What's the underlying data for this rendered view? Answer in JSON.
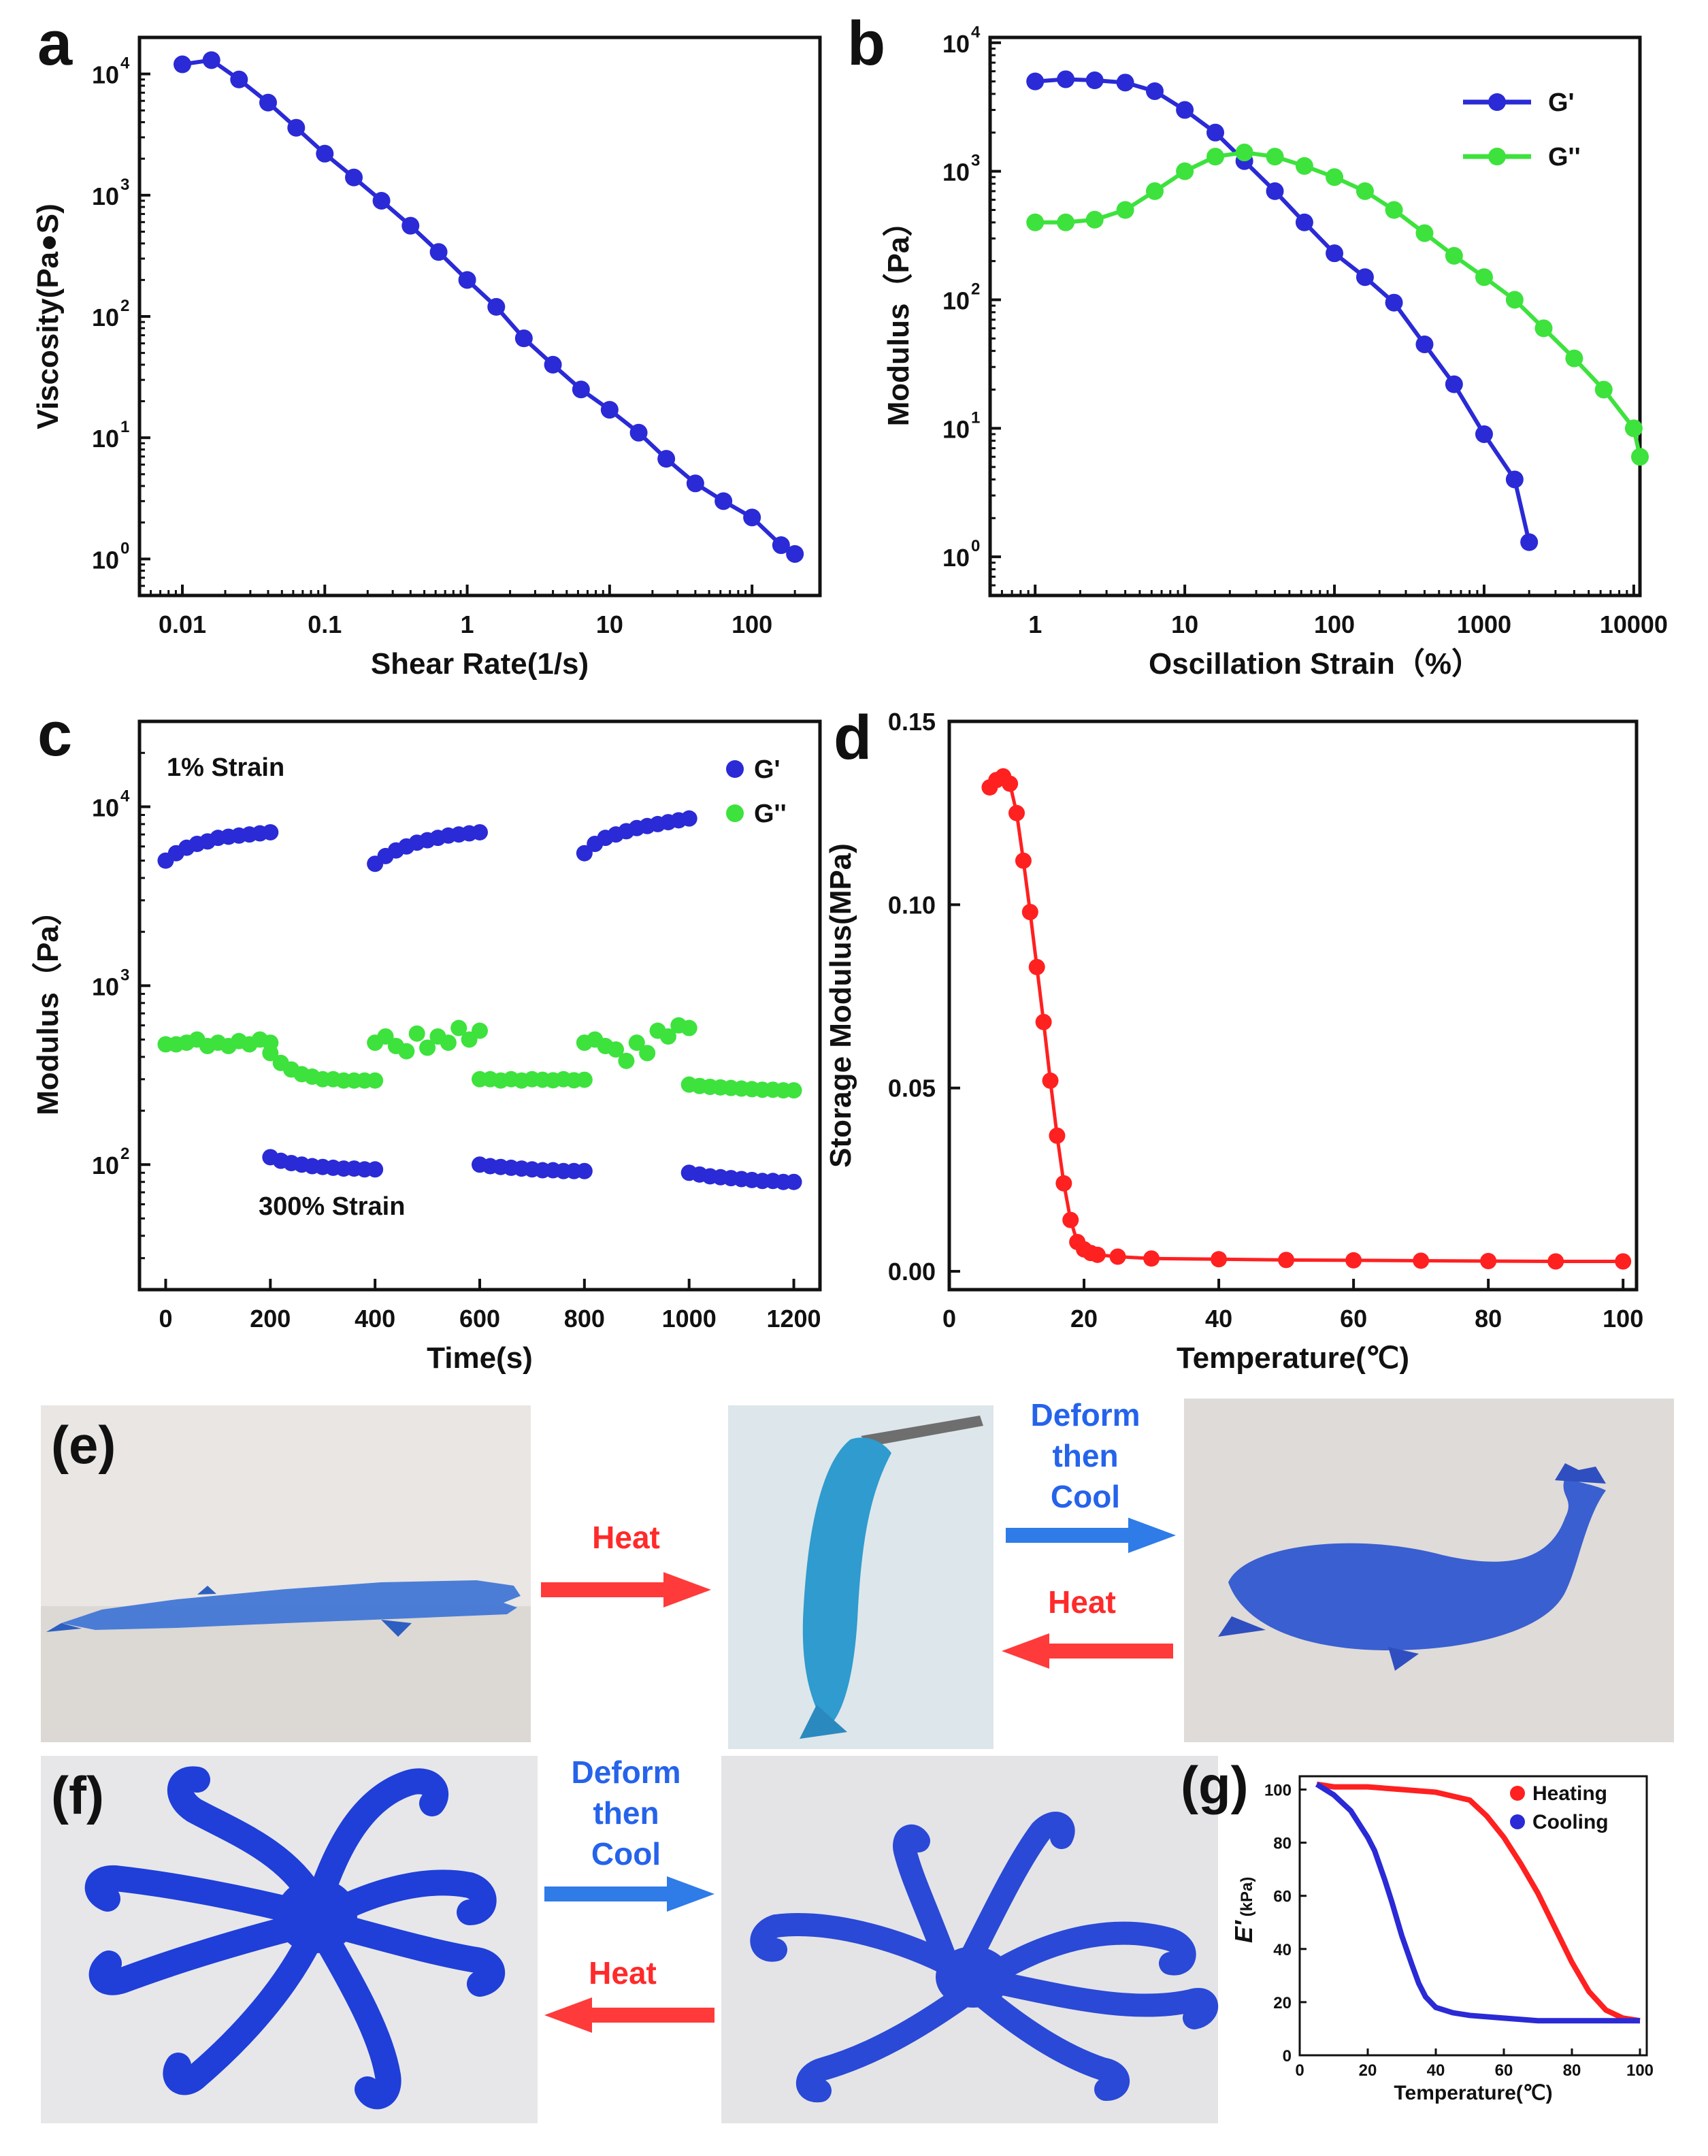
{
  "colors": {
    "blue": "#2a2ad6",
    "green": "#3de23d",
    "red": "#ff2020",
    "text_blue": "#2563eb",
    "text_red": "#ff2a2a"
  },
  "chart_data": [
    {
      "id": "a",
      "panel_label": "a",
      "type": "line",
      "xscale": "log",
      "yscale": "log",
      "xlabel": "Shear Rate(1/s)",
      "ylabel": "Viscosity(Pa●S)",
      "xlim": [
        0.005,
        300
      ],
      "ylim": [
        0.5,
        20000
      ],
      "xticks": [
        {
          "v": 0.01,
          "label": "0.01"
        },
        {
          "v": 0.1,
          "label": "0.1"
        },
        {
          "v": 1,
          "label": "1"
        },
        {
          "v": 10,
          "label": "10"
        },
        {
          "v": 100,
          "label": "100"
        }
      ],
      "yticks": [
        {
          "v": 1,
          "base": "10",
          "exp": "0"
        },
        {
          "v": 10,
          "base": "10",
          "exp": "1"
        },
        {
          "v": 100,
          "base": "10",
          "exp": "2"
        },
        {
          "v": 1000,
          "base": "10",
          "exp": "3"
        },
        {
          "v": 10000,
          "base": "10",
          "exp": "4"
        }
      ],
      "series": [
        {
          "name": "Viscosity",
          "color": "#2a2ad6",
          "x": [
            0.01,
            0.016,
            0.025,
            0.04,
            0.063,
            0.1,
            0.16,
            0.25,
            0.4,
            0.63,
            1,
            1.6,
            2.5,
            4,
            6.3,
            10,
            16,
            25,
            40,
            63,
            100,
            160,
            200
          ],
          "y": [
            12000,
            13000,
            9000,
            5800,
            3600,
            2200,
            1400,
            900,
            560,
            340,
            200,
            120,
            66,
            40,
            25,
            17,
            11,
            6.7,
            4.2,
            3.0,
            2.2,
            1.3,
            1.1
          ]
        }
      ]
    },
    {
      "id": "b",
      "panel_label": "b",
      "type": "line",
      "xscale": "log",
      "yscale": "log",
      "xlabel": "Oscillation Strain（%）",
      "ylabel": "Modulus（Pa）",
      "xlim": [
        0.5,
        11000
      ],
      "ylim": [
        0.5,
        11000
      ],
      "xticks": [
        {
          "v": 1,
          "label": "1"
        },
        {
          "v": 10,
          "label": "10"
        },
        {
          "v": 100,
          "label": "100"
        },
        {
          "v": 1000,
          "label": "1000"
        },
        {
          "v": 10000,
          "label": "10000"
        }
      ],
      "yticks": [
        {
          "v": 1,
          "base": "10",
          "exp": "0"
        },
        {
          "v": 10,
          "base": "10",
          "exp": "1"
        },
        {
          "v": 100,
          "base": "10",
          "exp": "2"
        },
        {
          "v": 1000,
          "base": "10",
          "exp": "3"
        },
        {
          "v": 10000,
          "base": "10",
          "exp": "4"
        }
      ],
      "legend": "top-right",
      "series": [
        {
          "name": "G'",
          "color": "#2a2ad6",
          "x": [
            1,
            1.6,
            2.5,
            4,
            6.3,
            10,
            16,
            25,
            40,
            63,
            100,
            160,
            250,
            400,
            630,
            1000,
            1600,
            2000
          ],
          "y": [
            5000,
            5200,
            5100,
            4900,
            4200,
            3000,
            2000,
            1200,
            700,
            400,
            230,
            150,
            95,
            45,
            22,
            9,
            4,
            1.3
          ]
        },
        {
          "name": "G''",
          "color": "#3de23d",
          "x": [
            1,
            1.6,
            2.5,
            4,
            6.3,
            10,
            16,
            25,
            40,
            63,
            100,
            160,
            250,
            400,
            630,
            1000,
            1600,
            2500,
            4000,
            6300,
            10000,
            11000
          ],
          "y": [
            400,
            400,
            420,
            500,
            700,
            1000,
            1300,
            1400,
            1300,
            1100,
            900,
            700,
            500,
            330,
            220,
            150,
            100,
            60,
            35,
            20,
            10,
            6
          ]
        }
      ]
    },
    {
      "id": "c",
      "panel_label": "c",
      "type": "scatter",
      "xscale": "linear",
      "yscale": "log",
      "xlabel": "Time(s)",
      "ylabel": "Modulus（Pa）",
      "xlim": [
        -50,
        1250
      ],
      "ylim": [
        20,
        30000
      ],
      "xticks": [
        {
          "v": 0,
          "label": "0"
        },
        {
          "v": 200,
          "label": "200"
        },
        {
          "v": 400,
          "label": "400"
        },
        {
          "v": 600,
          "label": "600"
        },
        {
          "v": 800,
          "label": "800"
        },
        {
          "v": 1000,
          "label": "1000"
        },
        {
          "v": 1200,
          "label": "1200"
        }
      ],
      "yticks": [
        {
          "v": 100,
          "base": "10",
          "exp": "2"
        },
        {
          "v": 1000,
          "base": "10",
          "exp": "3"
        },
        {
          "v": 10000,
          "base": "10",
          "exp": "4"
        }
      ],
      "legend": "top-right",
      "annotations": [
        "1% Strain",
        "300% Strain"
      ],
      "series": [
        {
          "name": "G'",
          "color": "#2a2ad6",
          "segments": [
            {
              "x": [
                0,
                20,
                40,
                60,
                80,
                100,
                120,
                140,
                160,
                180,
                200
              ],
              "y": [
                5000,
                5500,
                5900,
                6200,
                6400,
                6700,
                6800,
                6900,
                7000,
                7100,
                7200
              ]
            },
            {
              "x": [
                200,
                220,
                240,
                260,
                280,
                300,
                320,
                340,
                360,
                380,
                400
              ],
              "y": [
                110,
                105,
                102,
                100,
                98,
                97,
                96,
                95,
                95,
                94,
                94
              ]
            },
            {
              "x": [
                400,
                420,
                440,
                460,
                480,
                500,
                520,
                540,
                560,
                580,
                600
              ],
              "y": [
                4800,
                5300,
                5700,
                6000,
                6300,
                6500,
                6700,
                6900,
                7000,
                7100,
                7200
              ]
            },
            {
              "x": [
                600,
                620,
                640,
                660,
                680,
                700,
                720,
                740,
                760,
                780,
                800
              ],
              "y": [
                100,
                98,
                97,
                96,
                95,
                94,
                93,
                93,
                92,
                92,
                92
              ]
            },
            {
              "x": [
                800,
                820,
                840,
                860,
                880,
                900,
                920,
                940,
                960,
                980,
                1000
              ],
              "y": [
                5500,
                6200,
                6700,
                7000,
                7300,
                7600,
                7800,
                8000,
                8200,
                8400,
                8600
              ]
            },
            {
              "x": [
                1000,
                1020,
                1040,
                1060,
                1080,
                1100,
                1120,
                1140,
                1160,
                1180,
                1200
              ],
              "y": [
                90,
                88,
                86,
                85,
                84,
                83,
                82,
                81,
                81,
                80,
                80
              ]
            }
          ]
        },
        {
          "name": "G''",
          "color": "#3de23d",
          "segments": [
            {
              "x": [
                0,
                20,
                40,
                60,
                80,
                100,
                120,
                140,
                160,
                180,
                200
              ],
              "y": [
                470,
                470,
                480,
                500,
                460,
                480,
                460,
                490,
                470,
                500,
                480
              ]
            },
            {
              "x": [
                200,
                220,
                240,
                260,
                280,
                300,
                320,
                340,
                360,
                380,
                400
              ],
              "y": [
                420,
                370,
                340,
                320,
                310,
                300,
                300,
                295,
                295,
                295,
                295
              ]
            },
            {
              "x": [
                400,
                420,
                440,
                460,
                480,
                500,
                520,
                540,
                560,
                580,
                600
              ],
              "y": [
                480,
                520,
                460,
                430,
                540,
                450,
                520,
                480,
                580,
                500,
                560
              ]
            },
            {
              "x": [
                600,
                620,
                640,
                660,
                680,
                700,
                720,
                740,
                760,
                780,
                800
              ],
              "y": [
                300,
                300,
                295,
                300,
                295,
                300,
                298,
                296,
                300,
                296,
                298
              ]
            },
            {
              "x": [
                800,
                820,
                840,
                860,
                880,
                900,
                920,
                940,
                960,
                980,
                1000
              ],
              "y": [
                480,
                500,
                460,
                440,
                380,
                480,
                420,
                560,
                520,
                600,
                580
              ]
            },
            {
              "x": [
                1000,
                1020,
                1040,
                1060,
                1080,
                1100,
                1120,
                1140,
                1160,
                1180,
                1200
              ],
              "y": [
                280,
                275,
                272,
                270,
                268,
                266,
                264,
                262,
                262,
                260,
                260
              ]
            }
          ]
        }
      ]
    },
    {
      "id": "d",
      "panel_label": "d",
      "type": "line",
      "xscale": "linear",
      "yscale": "linear",
      "xlabel": "Temperature(℃)",
      "ylabel": "Storage Modulus(MPa)",
      "xlim": [
        0,
        102
      ],
      "ylim": [
        -0.005,
        0.15
      ],
      "xticks": [
        {
          "v": 0,
          "label": "0"
        },
        {
          "v": 20,
          "label": "20"
        },
        {
          "v": 40,
          "label": "40"
        },
        {
          "v": 60,
          "label": "60"
        },
        {
          "v": 80,
          "label": "80"
        },
        {
          "v": 100,
          "label": "100"
        }
      ],
      "yticks": [
        {
          "v": 0,
          "label": "0.00"
        },
        {
          "v": 0.05,
          "label": "0.05"
        },
        {
          "v": 0.1,
          "label": "0.10"
        },
        {
          "v": 0.15,
          "label": "0.15"
        }
      ],
      "series": [
        {
          "name": "Storage Modulus",
          "color": "#ff2020",
          "x": [
            6,
            7,
            8,
            9,
            10,
            11,
            12,
            13,
            14,
            15,
            16,
            17,
            18,
            19,
            20,
            21,
            22,
            25,
            30,
            40,
            50,
            60,
            70,
            80,
            90,
            100
          ],
          "y": [
            0.132,
            0.134,
            0.135,
            0.133,
            0.125,
            0.112,
            0.098,
            0.083,
            0.068,
            0.052,
            0.037,
            0.024,
            0.014,
            0.008,
            0.006,
            0.005,
            0.0045,
            0.004,
            0.0035,
            0.0033,
            0.0031,
            0.003,
            0.0029,
            0.0028,
            0.0027,
            0.0027
          ]
        }
      ]
    },
    {
      "id": "g",
      "panel_label": "(g)",
      "type": "line",
      "xscale": "linear",
      "yscale": "linear",
      "xlabel": "Temperature(℃)",
      "ylabel": "E′(kPa)",
      "ylabel_main": "E′",
      "ylabel_unit": "(kPa)",
      "xlim": [
        0,
        102
      ],
      "ylim": [
        0,
        105
      ],
      "xticks": [
        {
          "v": 0,
          "label": "0"
        },
        {
          "v": 20,
          "label": "20"
        },
        {
          "v": 40,
          "label": "40"
        },
        {
          "v": 60,
          "label": "60"
        },
        {
          "v": 80,
          "label": "80"
        },
        {
          "v": 100,
          "label": "100"
        }
      ],
      "yticks": [
        {
          "v": 0,
          "label": "0"
        },
        {
          "v": 20,
          "label": "20"
        },
        {
          "v": 40,
          "label": "40"
        },
        {
          "v": 60,
          "label": "60"
        },
        {
          "v": 80,
          "label": "80"
        },
        {
          "v": 100,
          "label": "100"
        }
      ],
      "legend": "top-right",
      "series": [
        {
          "name": "Heating",
          "color": "#ff2020",
          "x": [
            5,
            10,
            20,
            30,
            40,
            50,
            55,
            60,
            65,
            70,
            75,
            80,
            85,
            90,
            95,
            100
          ],
          "y": [
            102,
            101,
            101,
            100,
            99,
            96,
            90,
            82,
            72,
            61,
            48,
            35,
            24,
            17,
            14,
            13
          ]
        },
        {
          "name": "Cooling",
          "color": "#2a2ad6",
          "x": [
            100,
            90,
            80,
            70,
            60,
            50,
            45,
            40,
            37,
            35,
            33,
            30,
            27,
            25,
            22,
            20,
            15,
            10,
            5
          ],
          "y": [
            13,
            13,
            13,
            13,
            14,
            15,
            16,
            18,
            22,
            27,
            34,
            45,
            58,
            66,
            77,
            82,
            92,
            98,
            102
          ]
        }
      ]
    }
  ],
  "photos": {
    "e_label": "(e)",
    "f_label": "(f)",
    "arrows": [
      {
        "id": "e-heat-forward",
        "label": "Heat",
        "color": "#ff2a2a",
        "direction": "right"
      },
      {
        "id": "e-deform-cool",
        "label_lines": [
          "Deform",
          "then",
          "Cool"
        ],
        "color": "#2563eb",
        "direction": "right"
      },
      {
        "id": "e-heat-back",
        "label": "Heat",
        "color": "#ff2a2a",
        "direction": "left"
      },
      {
        "id": "f-deform-cool",
        "label_lines": [
          "Deform",
          "then",
          "Cool"
        ],
        "color": "#2563eb",
        "direction": "right"
      },
      {
        "id": "f-heat-back",
        "label": "Heat",
        "color": "#ff2a2a",
        "direction": "left"
      }
    ]
  }
}
